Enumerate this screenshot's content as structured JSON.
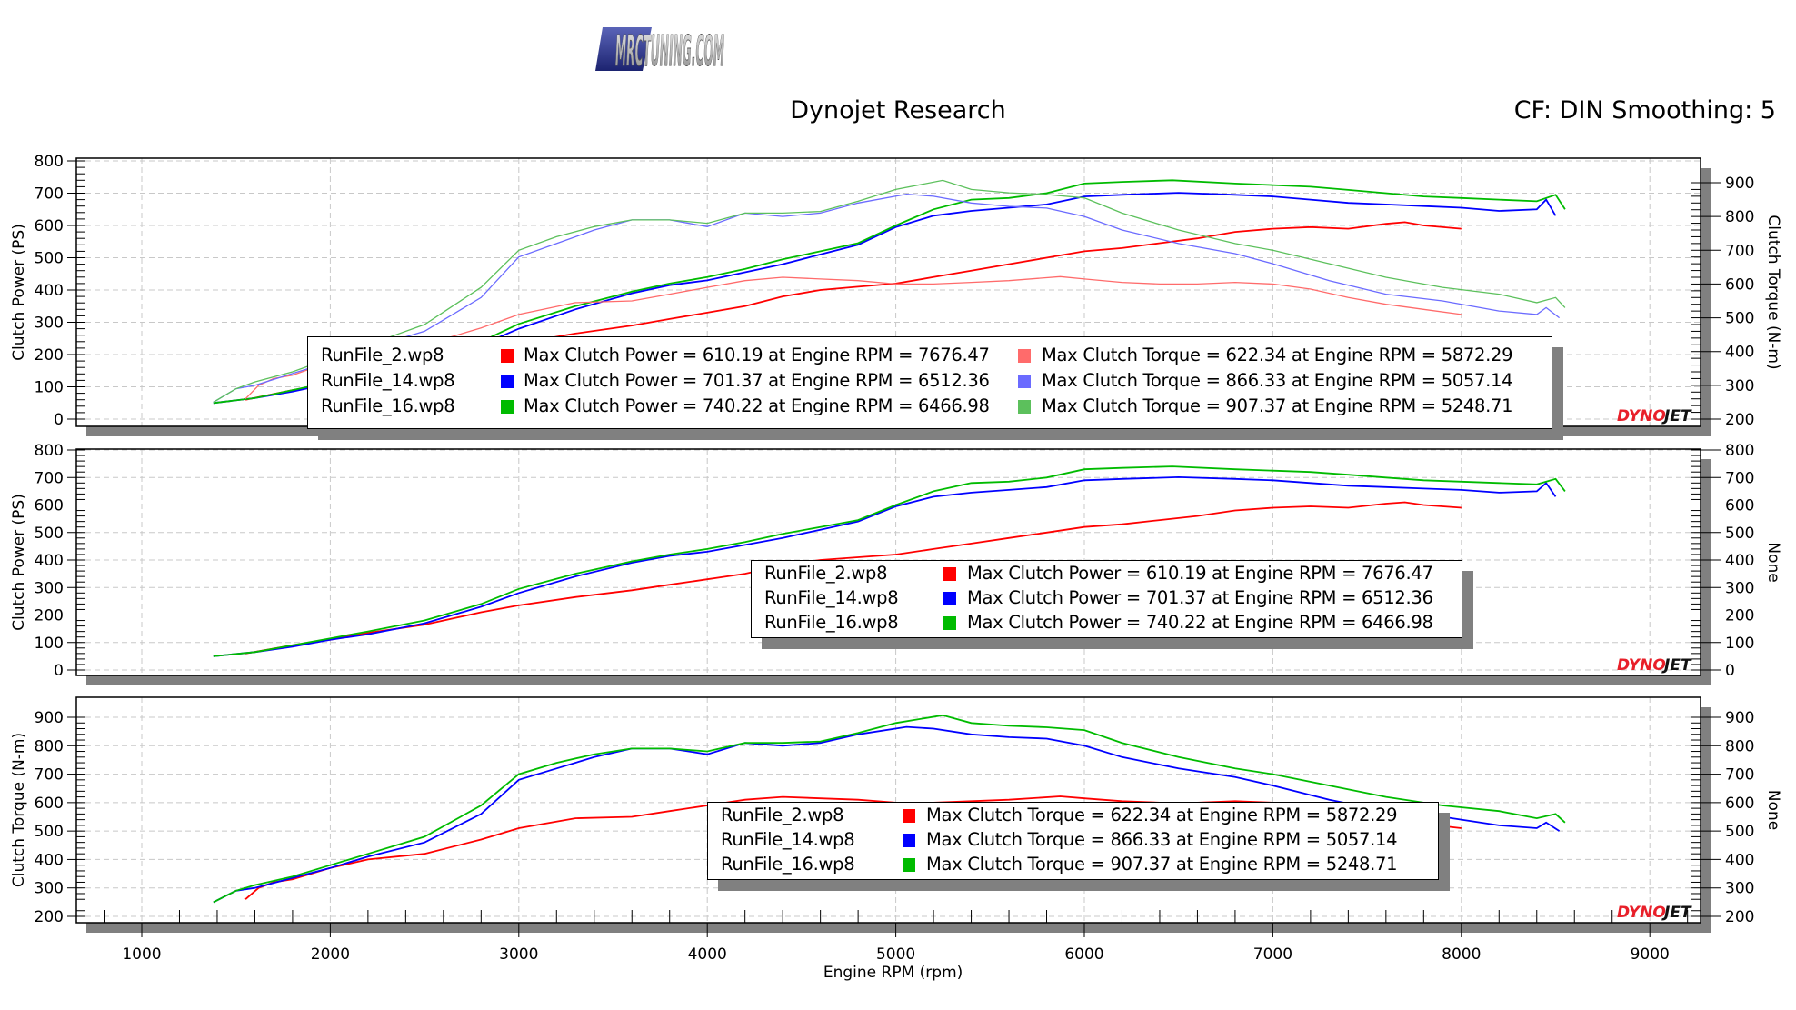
{
  "header": {
    "logo_text": "MRCTUNING.COM",
    "title": "Dynojet Research",
    "correction": "CF: DIN Smoothing: 5"
  },
  "colors": {
    "run2": "#ff0000",
    "run14": "#0000ff",
    "run16": "#00bb00",
    "run2_torque": "#ff6b6b",
    "run14_torque": "#6b6bff",
    "run16_torque": "#5cc05c",
    "grid": "#c8c8c8",
    "shadow": "#808080",
    "dynojet_red": "#e8202a"
  },
  "brand": {
    "dynojet": "DYNOJET"
  },
  "legends": {
    "combined": {
      "rows": [
        {
          "file": "RunFile_2.wp8",
          "power": "Max Clutch Power = 610.19 at Engine RPM = 7676.47",
          "torque": "Max Clutch Torque = 622.34 at Engine RPM = 5872.29"
        },
        {
          "file": "RunFile_14.wp8",
          "power": "Max Clutch Power = 701.37 at Engine RPM = 6512.36",
          "torque": "Max Clutch Torque = 866.33 at Engine RPM = 5057.14"
        },
        {
          "file": "RunFile_16.wp8",
          "power": "Max Clutch Power = 740.22 at Engine RPM = 6466.98",
          "torque": "Max Clutch Torque = 907.37 at Engine RPM = 5248.71"
        }
      ]
    },
    "power": {
      "rows": [
        {
          "file": "RunFile_2.wp8",
          "text": "Max Clutch Power = 610.19 at Engine RPM = 7676.47"
        },
        {
          "file": "RunFile_14.wp8",
          "text": "Max Clutch Power = 701.37 at Engine RPM = 6512.36"
        },
        {
          "file": "RunFile_16.wp8",
          "text": "Max Clutch Power = 740.22 at Engine RPM = 6466.98"
        }
      ]
    },
    "torque": {
      "rows": [
        {
          "file": "RunFile_2.wp8",
          "text": "Max Clutch Torque = 622.34 at Engine RPM = 5872.29"
        },
        {
          "file": "RunFile_14.wp8",
          "text": "Max Clutch Torque = 866.33 at Engine RPM = 5057.14"
        },
        {
          "file": "RunFile_16.wp8",
          "text": "Max Clutch Torque = 907.37 at Engine RPM = 5248.71"
        }
      ]
    }
  },
  "chart_data": [
    {
      "type": "line",
      "title": "Dynojet Research",
      "subtitle": "CF: DIN Smoothing: 5",
      "xlabel": "Engine RPM (rpm)",
      "ylabel": "Clutch Power (PS)",
      "y2label": "Clutch Torque (N-m)",
      "xlim": [
        650,
        9300
      ],
      "ylim": [
        0,
        800
      ],
      "y2lim": [
        200,
        900
      ],
      "xticks": [
        1000,
        2000,
        3000,
        4000,
        5000,
        6000,
        7000,
        8000,
        9000
      ],
      "yticks": [
        0,
        100,
        200,
        300,
        400,
        500,
        600,
        700,
        800
      ],
      "y2ticks": [
        200,
        300,
        400,
        500,
        600,
        700,
        800,
        900
      ],
      "grid": true,
      "legend_position": "lower center",
      "series": [
        {
          "name": "RunFile_2.wp8 Clutch Power",
          "axis": "y",
          "x": [
            1550,
            1800,
            2000,
            2200,
            2500,
            2800,
            3000,
            3300,
            3600,
            3800,
            4000,
            4200,
            4400,
            4600,
            4800,
            5000,
            5200,
            5400,
            5600,
            5800,
            6000,
            6200,
            6400,
            6600,
            6800,
            7000,
            7200,
            7400,
            7600,
            7700,
            7800,
            8000
          ],
          "values": [
            60,
            90,
            110,
            135,
            165,
            210,
            235,
            265,
            290,
            310,
            330,
            350,
            380,
            400,
            410,
            420,
            440,
            460,
            480,
            500,
            520,
            530,
            545,
            560,
            580,
            590,
            595,
            590,
            605,
            610,
            600,
            590
          ]
        },
        {
          "name": "RunFile_14.wp8 Clutch Power",
          "axis": "y",
          "x": [
            1380,
            1600,
            1800,
            2000,
            2200,
            2500,
            2800,
            3000,
            3300,
            3600,
            3800,
            4000,
            4200,
            4400,
            4600,
            4800,
            5000,
            5200,
            5400,
            5600,
            5800,
            6000,
            6200,
            6500,
            6800,
            7000,
            7200,
            7400,
            7600,
            7800,
            8000,
            8200,
            8400,
            8450,
            8500
          ],
          "values": [
            50,
            65,
            85,
            110,
            130,
            170,
            230,
            280,
            340,
            390,
            415,
            430,
            455,
            480,
            510,
            540,
            595,
            630,
            645,
            655,
            665,
            690,
            695,
            701,
            695,
            690,
            680,
            670,
            665,
            660,
            655,
            645,
            650,
            680,
            630
          ]
        },
        {
          "name": "RunFile_16.wp8 Clutch Power",
          "axis": "y",
          "x": [
            1380,
            1600,
            1800,
            2000,
            2200,
            2500,
            2800,
            3000,
            3300,
            3600,
            3800,
            4000,
            4200,
            4400,
            4600,
            4800,
            5000,
            5200,
            5400,
            5600,
            5800,
            6000,
            6200,
            6467,
            6800,
            7000,
            7200,
            7400,
            7600,
            7800,
            8000,
            8200,
            8400,
            8500,
            8550
          ],
          "values": [
            50,
            65,
            90,
            115,
            140,
            180,
            240,
            295,
            350,
            395,
            420,
            440,
            465,
            495,
            520,
            545,
            600,
            650,
            680,
            685,
            700,
            730,
            735,
            740,
            730,
            725,
            720,
            710,
            700,
            690,
            685,
            680,
            675,
            695,
            650
          ]
        },
        {
          "name": "RunFile_2.wp8 Clutch Torque",
          "axis": "y2",
          "x": [
            1550,
            1620,
            1700,
            1800,
            2000,
            2200,
            2500,
            2800,
            3000,
            3300,
            3600,
            3800,
            4000,
            4200,
            4400,
            4600,
            4800,
            5000,
            5200,
            5400,
            5600,
            5872,
            6000,
            6200,
            6400,
            6600,
            6800,
            7000,
            7200,
            7400,
            7600,
            7800,
            8000
          ],
          "values": [
            260,
            300,
            320,
            330,
            370,
            400,
            420,
            470,
            510,
            545,
            550,
            570,
            590,
            610,
            620,
            615,
            610,
            600,
            600,
            605,
            610,
            622,
            615,
            605,
            600,
            600,
            605,
            600,
            585,
            560,
            540,
            525,
            510
          ]
        },
        {
          "name": "RunFile_14.wp8 Clutch Torque",
          "axis": "y2",
          "x": [
            1380,
            1500,
            1600,
            1800,
            2000,
            2200,
            2500,
            2800,
            3000,
            3200,
            3400,
            3600,
            3800,
            4000,
            4200,
            4400,
            4600,
            4800,
            5057,
            5200,
            5400,
            5600,
            5800,
            6000,
            6200,
            6500,
            6800,
            7000,
            7300,
            7600,
            7900,
            8200,
            8400,
            8450,
            8520
          ],
          "values": [
            250,
            290,
            300,
            335,
            370,
            410,
            460,
            560,
            680,
            720,
            760,
            790,
            790,
            770,
            810,
            800,
            810,
            840,
            866,
            860,
            840,
            830,
            825,
            800,
            760,
            720,
            690,
            660,
            610,
            570,
            550,
            520,
            510,
            530,
            500
          ]
        },
        {
          "name": "RunFile_16.wp8 Clutch Torque",
          "axis": "y2",
          "x": [
            1380,
            1500,
            1600,
            1800,
            2000,
            2200,
            2500,
            2800,
            3000,
            3200,
            3400,
            3600,
            3800,
            4000,
            4200,
            4400,
            4600,
            4800,
            5000,
            5249,
            5400,
            5600,
            5800,
            6000,
            6200,
            6500,
            6800,
            7000,
            7300,
            7600,
            7900,
            8200,
            8400,
            8500,
            8550
          ],
          "values": [
            250,
            290,
            310,
            340,
            380,
            420,
            480,
            590,
            700,
            740,
            770,
            790,
            790,
            780,
            810,
            810,
            815,
            845,
            880,
            907,
            880,
            870,
            865,
            855,
            810,
            760,
            720,
            700,
            660,
            620,
            590,
            570,
            545,
            560,
            530
          ]
        }
      ]
    },
    {
      "type": "line",
      "xlabel": "Engine RPM (rpm)",
      "ylabel": "Clutch Power (PS)",
      "y2label": "None",
      "xlim": [
        650,
        9300
      ],
      "ylim": [
        0,
        800
      ],
      "yticks": [
        0,
        100,
        200,
        300,
        400,
        500,
        600,
        700,
        800
      ],
      "grid": true,
      "legend_position": "lower right",
      "series": [
        {
          "name": "RunFile_2.wp8",
          "x": [
            1550,
            1800,
            2000,
            2200,
            2500,
            2800,
            3000,
            3300,
            3600,
            3800,
            4000,
            4200,
            4400,
            4600,
            4800,
            5000,
            5200,
            5400,
            5600,
            5800,
            6000,
            6200,
            6400,
            6600,
            6800,
            7000,
            7200,
            7400,
            7600,
            7700,
            7800,
            8000
          ],
          "values": [
            60,
            90,
            110,
            135,
            165,
            210,
            235,
            265,
            290,
            310,
            330,
            350,
            380,
            400,
            410,
            420,
            440,
            460,
            480,
            500,
            520,
            530,
            545,
            560,
            580,
            590,
            595,
            590,
            605,
            610,
            600,
            590
          ]
        },
        {
          "name": "RunFile_14.wp8",
          "x": [
            1380,
            1600,
            1800,
            2000,
            2200,
            2500,
            2800,
            3000,
            3300,
            3600,
            3800,
            4000,
            4200,
            4400,
            4600,
            4800,
            5000,
            5200,
            5400,
            5600,
            5800,
            6000,
            6200,
            6500,
            6800,
            7000,
            7200,
            7400,
            7600,
            7800,
            8000,
            8200,
            8400,
            8450,
            8500
          ],
          "values": [
            50,
            65,
            85,
            110,
            130,
            170,
            230,
            280,
            340,
            390,
            415,
            430,
            455,
            480,
            510,
            540,
            595,
            630,
            645,
            655,
            665,
            690,
            695,
            701,
            695,
            690,
            680,
            670,
            665,
            660,
            655,
            645,
            650,
            680,
            630
          ]
        },
        {
          "name": "RunFile_16.wp8",
          "x": [
            1380,
            1600,
            1800,
            2000,
            2200,
            2500,
            2800,
            3000,
            3300,
            3600,
            3800,
            4000,
            4200,
            4400,
            4600,
            4800,
            5000,
            5200,
            5400,
            5600,
            5800,
            6000,
            6200,
            6467,
            6800,
            7000,
            7200,
            7400,
            7600,
            7800,
            8000,
            8200,
            8400,
            8500,
            8550
          ],
          "values": [
            50,
            65,
            90,
            115,
            140,
            180,
            240,
            295,
            350,
            395,
            420,
            440,
            465,
            495,
            520,
            545,
            600,
            650,
            680,
            685,
            700,
            730,
            735,
            740,
            730,
            725,
            720,
            710,
            700,
            690,
            685,
            680,
            675,
            695,
            650
          ]
        }
      ]
    },
    {
      "type": "line",
      "xlabel": "Engine RPM (rpm)",
      "ylabel": "Clutch Torque (N-m)",
      "y2label": "None",
      "xlim": [
        650,
        9300
      ],
      "ylim": [
        200,
        900
      ],
      "yticks": [
        200,
        300,
        400,
        500,
        600,
        700,
        800,
        900
      ],
      "xticks": [
        1000,
        2000,
        3000,
        4000,
        5000,
        6000,
        7000,
        8000,
        9000
      ],
      "grid": true,
      "legend_position": "lower center",
      "series": [
        {
          "name": "RunFile_2.wp8",
          "x": [
            1550,
            1620,
            1700,
            1800,
            2000,
            2200,
            2500,
            2800,
            3000,
            3300,
            3600,
            3800,
            4000,
            4200,
            4400,
            4600,
            4800,
            5000,
            5200,
            5400,
            5600,
            5872,
            6000,
            6200,
            6400,
            6600,
            6800,
            7000,
            7200,
            7400,
            7600,
            7800,
            8000
          ],
          "values": [
            260,
            300,
            320,
            330,
            370,
            400,
            420,
            470,
            510,
            545,
            550,
            570,
            590,
            610,
            620,
            615,
            610,
            600,
            600,
            605,
            610,
            622,
            615,
            605,
            600,
            600,
            605,
            600,
            585,
            560,
            540,
            525,
            510
          ]
        },
        {
          "name": "RunFile_14.wp8",
          "x": [
            1380,
            1500,
            1600,
            1800,
            2000,
            2200,
            2500,
            2800,
            3000,
            3200,
            3400,
            3600,
            3800,
            4000,
            4200,
            4400,
            4600,
            4800,
            5057,
            5200,
            5400,
            5600,
            5800,
            6000,
            6200,
            6500,
            6800,
            7000,
            7300,
            7600,
            7900,
            8200,
            8400,
            8450,
            8520
          ],
          "values": [
            250,
            290,
            300,
            335,
            370,
            410,
            460,
            560,
            680,
            720,
            760,
            790,
            790,
            770,
            810,
            800,
            810,
            840,
            866,
            860,
            840,
            830,
            825,
            800,
            760,
            720,
            690,
            660,
            610,
            570,
            550,
            520,
            510,
            530,
            500
          ]
        },
        {
          "name": "RunFile_16.wp8",
          "x": [
            1380,
            1500,
            1600,
            1800,
            2000,
            2200,
            2500,
            2800,
            3000,
            3200,
            3400,
            3600,
            3800,
            4000,
            4200,
            4400,
            4600,
            4800,
            5000,
            5249,
            5400,
            5600,
            5800,
            6000,
            6200,
            6500,
            6800,
            7000,
            7300,
            7600,
            7900,
            8200,
            8400,
            8500,
            8550
          ],
          "values": [
            250,
            290,
            310,
            340,
            380,
            420,
            480,
            590,
            700,
            740,
            770,
            790,
            790,
            780,
            810,
            810,
            815,
            845,
            880,
            907,
            880,
            870,
            865,
            855,
            810,
            760,
            720,
            700,
            660,
            620,
            590,
            570,
            545,
            560,
            530
          ]
        }
      ]
    }
  ]
}
